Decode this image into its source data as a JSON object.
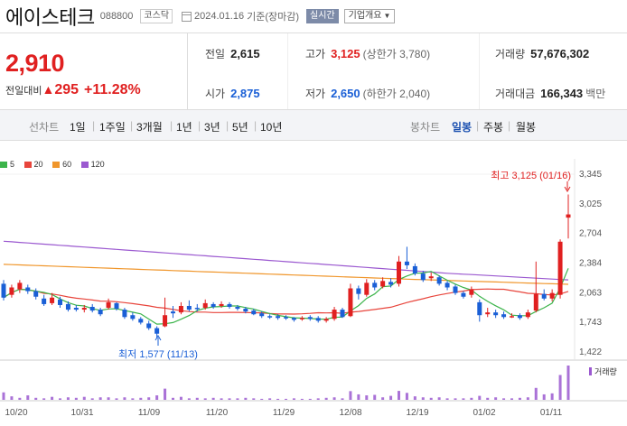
{
  "header": {
    "name": "에이스테크",
    "code": "088800",
    "market": "코스닥",
    "date": "2024.01.16",
    "basis": "기준(장마감)",
    "live_label": "실시간",
    "company_label": "기업개요"
  },
  "summary": {
    "price": "2,910",
    "change_label": "전일대비",
    "change_value": "295",
    "change_pct": "+11.28%",
    "prev_label": "전일",
    "prev": "2,615",
    "high_label": "고가",
    "high": "3,125",
    "upper_limit": "(상한가 3,780)",
    "volume_label": "거래량",
    "volume": "57,676,302",
    "open_label": "시가",
    "open": "2,875",
    "low_label": "저가",
    "low": "2,650",
    "lower_limit": "(하한가 2,040)",
    "amount_label": "거래대금",
    "amount": "166,343",
    "amount_unit": "백만"
  },
  "tabs": {
    "line_title": "선차트",
    "line_items": [
      "1일",
      "1주일",
      "3개월",
      "1년",
      "3년",
      "5년",
      "10년"
    ],
    "candle_title": "봉차트",
    "candle_items": [
      "일봉",
      "주봉",
      "월봉"
    ],
    "candle_active": 0
  },
  "colors": {
    "up": "#e02020",
    "down": "#1a5fd6",
    "ma5": "#3cb44b",
    "ma20": "#e8453c",
    "ma60": "#f0962b",
    "ma120": "#9b59d0"
  },
  "chart_data": {
    "type": "candlestick",
    "legend": [
      {
        "name": "5",
        "color": "#3cb44b"
      },
      {
        "name": "20",
        "color": "#e8453c"
      },
      {
        "name": "60",
        "color": "#f0962b"
      },
      {
        "name": "120",
        "color": "#9b59d0"
      }
    ],
    "yticks": [
      "3,345",
      "3,025",
      "2,704",
      "2,384",
      "2,063",
      "1,743",
      "1,422"
    ],
    "ylim": [
      1422,
      3345
    ],
    "xticks": [
      "10/20",
      "10/31",
      "11/09",
      "11/20",
      "11/29",
      "12/08",
      "12/19",
      "01/02",
      "01/11"
    ],
    "max_label": "최고 3,125 (01/16)",
    "min_label": "최저 1,577 (11/13)",
    "volume_label": "거래량",
    "candles": [
      [
        2160,
        2010,
        2200,
        1980
      ],
      [
        2040,
        2120,
        2150,
        2010
      ],
      [
        2100,
        2170,
        2200,
        2060
      ],
      [
        2120,
        2080,
        2150,
        2050
      ],
      [
        2080,
        2020,
        2110,
        1990
      ],
      [
        2000,
        1940,
        2040,
        1920
      ],
      [
        1950,
        2010,
        2060,
        1930
      ],
      [
        1990,
        1930,
        2020,
        1900
      ],
      [
        1940,
        1880,
        1970,
        1860
      ],
      [
        1900,
        1880,
        1930,
        1860
      ],
      [
        1880,
        1900,
        1930,
        1850
      ],
      [
        1910,
        1870,
        1940,
        1850
      ],
      [
        1880,
        1830,
        1900,
        1810
      ],
      [
        1900,
        1960,
        2000,
        1880
      ],
      [
        1950,
        1890,
        1960,
        1870
      ],
      [
        1880,
        1800,
        1900,
        1780
      ],
      [
        1820,
        1780,
        1850,
        1760
      ],
      [
        1780,
        1740,
        1800,
        1720
      ],
      [
        1730,
        1680,
        1760,
        1660
      ],
      [
        1680,
        1620,
        1700,
        1577
      ],
      [
        1700,
        1820,
        2010,
        1690
      ],
      [
        1860,
        1840,
        1920,
        1790
      ],
      [
        1850,
        1920,
        1960,
        1830
      ],
      [
        1920,
        1880,
        1980,
        1860
      ],
      [
        1900,
        1890,
        1940,
        1860
      ],
      [
        1900,
        1950,
        1990,
        1880
      ],
      [
        1940,
        1910,
        1960,
        1890
      ],
      [
        1920,
        1940,
        1970,
        1900
      ],
      [
        1940,
        1910,
        1960,
        1890
      ],
      [
        1910,
        1890,
        1930,
        1870
      ],
      [
        1890,
        1860,
        1910,
        1840
      ],
      [
        1870,
        1830,
        1890,
        1820
      ],
      [
        1840,
        1810,
        1860,
        1790
      ],
      [
        1810,
        1800,
        1830,
        1780
      ],
      [
        1810,
        1790,
        1830,
        1770
      ],
      [
        1800,
        1790,
        1820,
        1770
      ],
      [
        1790,
        1770,
        1800,
        1750
      ],
      [
        1780,
        1790,
        1810,
        1760
      ],
      [
        1800,
        1780,
        1820,
        1760
      ],
      [
        1790,
        1760,
        1810,
        1740
      ],
      [
        1760,
        1780,
        1800,
        1740
      ],
      [
        1780,
        1880,
        1910,
        1760
      ],
      [
        1880,
        1800,
        1900,
        1790
      ],
      [
        1810,
        2110,
        2160,
        1800
      ],
      [
        2110,
        2050,
        2140,
        1990
      ],
      [
        2040,
        2170,
        2210,
        2020
      ],
      [
        2170,
        2120,
        2200,
        2090
      ],
      [
        2130,
        2190,
        2230,
        2110
      ],
      [
        2180,
        2150,
        2220,
        2120
      ],
      [
        2160,
        2400,
        2460,
        2130
      ],
      [
        2400,
        2360,
        2560,
        2320
      ],
      [
        2350,
        2270,
        2380,
        2250
      ],
      [
        2270,
        2200,
        2300,
        2180
      ],
      [
        2220,
        2240,
        2280,
        2190
      ],
      [
        2230,
        2160,
        2250,
        2140
      ],
      [
        2170,
        2120,
        2190,
        2090
      ],
      [
        2130,
        2060,
        2150,
        2040
      ],
      [
        2060,
        2020,
        2080,
        2000
      ],
      [
        2040,
        2100,
        2130,
        2010
      ],
      [
        1960,
        1820,
        1990,
        1750
      ],
      [
        1830,
        1850,
        1900,
        1800
      ],
      [
        1850,
        1820,
        1880,
        1790
      ],
      [
        1830,
        1800,
        1860,
        1780
      ],
      [
        1810,
        1810,
        1840,
        1790
      ],
      [
        1820,
        1790,
        1840,
        1770
      ],
      [
        1800,
        1850,
        1880,
        1780
      ],
      [
        1870,
        2050,
        2400,
        1850
      ],
      [
        2050,
        2000,
        2100,
        1980
      ],
      [
        2000,
        2060,
        2100,
        1970
      ],
      [
        2040,
        2615,
        2640,
        2000
      ],
      [
        2875,
        2910,
        3125,
        2650
      ]
    ],
    "volumes": [
      30,
      14,
      8,
      18,
      8,
      6,
      12,
      6,
      10,
      8,
      12,
      6,
      10,
      10,
      6,
      10,
      6,
      8,
      10,
      18,
      45,
      8,
      12,
      6,
      8,
      6,
      8,
      6,
      6,
      6,
      8,
      6,
      4,
      6,
      4,
      4,
      6,
      4,
      4,
      6,
      8,
      10,
      6,
      35,
      22,
      18,
      20,
      10,
      16,
      36,
      28,
      14,
      10,
      8,
      10,
      6,
      6,
      6,
      8,
      16,
      8,
      10,
      6,
      6,
      8,
      10,
      48,
      22,
      26,
      100,
      138
    ]
  }
}
